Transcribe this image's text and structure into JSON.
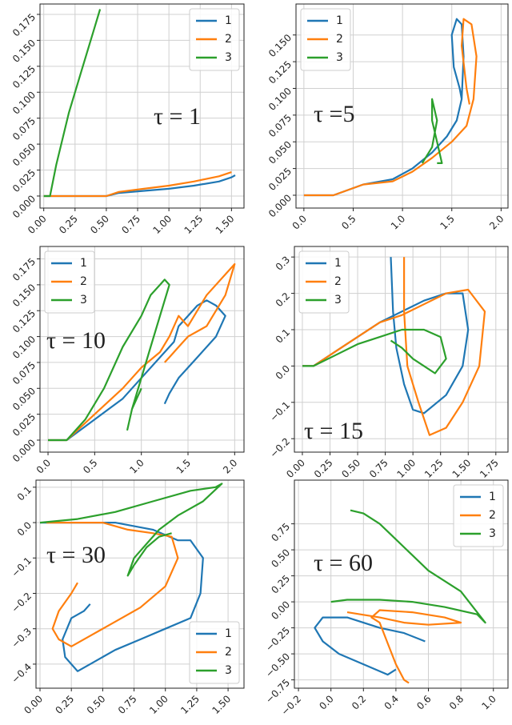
{
  "chart_data": [
    {
      "type": "line",
      "annotation": "τ = 1",
      "legend": "upper right",
      "grid": true,
      "xlim": [
        -0.03,
        1.6
      ],
      "ylim": [
        -0.0116,
        0.185
      ],
      "xticks": [
        {
          "value": 0,
          "label": "0.00"
        },
        {
          "value": 0.25,
          "label": "0.25"
        },
        {
          "value": 0.5,
          "label": "0.50"
        },
        {
          "value": 0.75,
          "label": "0.75"
        },
        {
          "value": 1,
          "label": "1.00"
        },
        {
          "value": 1.25,
          "label": "1.25"
        },
        {
          "value": 1.5,
          "label": "1.50"
        }
      ],
      "yticks": [
        {
          "value": 0,
          "label": "0.000"
        },
        {
          "value": 0.025,
          "label": "0.025"
        },
        {
          "value": 0.05,
          "label": "0.050"
        },
        {
          "value": 0.075,
          "label": "0.075"
        },
        {
          "value": 0.1,
          "label": "0.100"
        },
        {
          "value": 0.125,
          "label": "0.125"
        },
        {
          "value": 0.15,
          "label": "0.150"
        },
        {
          "value": 0.175,
          "label": "0.175"
        }
      ],
      "series": [
        {
          "name": "1",
          "color": "#1f77b4",
          "x": [
            0,
            0.5,
            0.6,
            0.8,
            1.0,
            1.2,
            1.4,
            1.5,
            1.53
          ],
          "values": [
            0,
            0,
            0.003,
            0.005,
            0.007,
            0.01,
            0.014,
            0.018,
            0.02
          ]
        },
        {
          "name": "2",
          "color": "#ff7f0e",
          "x": [
            0,
            0.5,
            0.6,
            0.8,
            1.0,
            1.2,
            1.4,
            1.5
          ],
          "values": [
            0,
            0,
            0.004,
            0.007,
            0.01,
            0.014,
            0.019,
            0.023
          ]
        },
        {
          "name": "3",
          "color": "#2ca02c",
          "x": [
            0,
            0.05,
            0.1,
            0.2,
            0.3,
            0.4,
            0.45
          ],
          "values": [
            0,
            0,
            0.03,
            0.08,
            0.12,
            0.16,
            0.18
          ]
        }
      ]
    },
    {
      "type": "line",
      "annotation": "τ =5",
      "legend": "upper left",
      "grid": true,
      "xlim": [
        -0.08,
        2.07
      ],
      "ylim": [
        -0.012,
        0.179
      ],
      "xticks": [
        {
          "value": 0,
          "label": "0.0"
        },
        0.5,
        {
          "value": 1,
          "label": "1.0"
        },
        1.5,
        {
          "value": 2,
          "label": "2.0"
        }
      ],
      "yticks": [
        {
          "value": 0,
          "label": "0.000"
        },
        {
          "value": 0.025,
          "label": "0.025"
        },
        {
          "value": 0.05,
          "label": "0.050"
        },
        {
          "value": 0.075,
          "label": "0.075"
        },
        {
          "value": 0.1,
          "label": "0.100"
        },
        {
          "value": 0.125,
          "label": "0.125"
        },
        {
          "value": 0.15,
          "label": "0.150"
        }
      ],
      "series": [
        {
          "name": "1",
          "color": "#1f77b4",
          "x": [
            0,
            0.3,
            0.6,
            0.9,
            1.1,
            1.3,
            1.45,
            1.55,
            1.6,
            1.62,
            1.6,
            1.55,
            1.5,
            1.52,
            1.58,
            1.6
          ],
          "values": [
            0,
            0,
            0.01,
            0.015,
            0.025,
            0.04,
            0.055,
            0.07,
            0.09,
            0.13,
            0.16,
            0.165,
            0.15,
            0.12,
            0.1,
            0.09
          ]
        },
        {
          "name": "2",
          "color": "#ff7f0e",
          "x": [
            0,
            0.3,
            0.6,
            0.9,
            1.1,
            1.3,
            1.5,
            1.65,
            1.72,
            1.75,
            1.7,
            1.62,
            1.6,
            1.65,
            1.68
          ],
          "values": [
            0,
            0,
            0.01,
            0.013,
            0.022,
            0.035,
            0.05,
            0.065,
            0.09,
            0.13,
            0.16,
            0.165,
            0.14,
            0.1,
            0.085
          ]
        },
        {
          "name": "3",
          "color": "#2ca02c",
          "x": [
            1.2,
            1.3,
            1.35,
            1.3,
            1.3,
            1.35,
            1.4,
            1.35
          ],
          "values": [
            0.03,
            0.045,
            0.07,
            0.09,
            0.07,
            0.05,
            0.03,
            0.03
          ]
        }
      ]
    },
    {
      "type": "line",
      "annotation": "τ = 10",
      "legend": "upper left",
      "grid": true,
      "xlim": [
        -0.086,
        2.1
      ],
      "ylim": [
        -0.0116,
        0.187
      ],
      "xticks": [
        {
          "value": 0,
          "label": "0.0"
        },
        0.5,
        {
          "value": 1,
          "label": "1.0"
        },
        1.5,
        {
          "value": 2,
          "label": "2.0"
        }
      ],
      "yticks": [
        {
          "value": 0,
          "label": "0.000"
        },
        {
          "value": 0.025,
          "label": "0.025"
        },
        {
          "value": 0.05,
          "label": "0.050"
        },
        {
          "value": 0.075,
          "label": "0.075"
        },
        {
          "value": 0.1,
          "label": "0.100"
        },
        {
          "value": 0.125,
          "label": "0.125"
        },
        {
          "value": 0.15,
          "label": "0.150"
        },
        {
          "value": 0.175,
          "label": "0.175"
        }
      ],
      "series": [
        {
          "name": "1",
          "color": "#1f77b4",
          "x": [
            0,
            0.2,
            0.5,
            0.8,
            1.0,
            1.2,
            1.35,
            1.4,
            1.5,
            1.6,
            1.7,
            1.8,
            1.9,
            1.8,
            1.6,
            1.4,
            1.3,
            1.25
          ],
          "values": [
            0,
            0,
            0.02,
            0.04,
            0.06,
            0.08,
            0.095,
            0.11,
            0.12,
            0.13,
            0.135,
            0.13,
            0.12,
            0.1,
            0.08,
            0.06,
            0.045,
            0.035
          ]
        },
        {
          "name": "2",
          "color": "#ff7f0e",
          "x": [
            0,
            0.2,
            0.5,
            0.8,
            1.0,
            1.2,
            1.3,
            1.4,
            1.5,
            1.7,
            1.9,
            2.0,
            1.9,
            1.7,
            1.5,
            1.4,
            1.3,
            1.25
          ],
          "values": [
            0,
            0,
            0.025,
            0.05,
            0.07,
            0.085,
            0.1,
            0.12,
            0.11,
            0.14,
            0.16,
            0.17,
            0.14,
            0.11,
            0.1,
            0.09,
            0.08,
            0.075
          ]
        },
        {
          "name": "3",
          "color": "#2ca02c",
          "x": [
            0,
            0.2,
            0.4,
            0.6,
            0.8,
            1.0,
            1.1,
            1.2,
            1.25,
            1.3,
            1.2,
            1.1,
            1.0,
            0.9,
            0.85,
            0.9,
            1.0
          ],
          "values": [
            0,
            0,
            0.02,
            0.05,
            0.09,
            0.12,
            0.14,
            0.15,
            0.155,
            0.15,
            0.12,
            0.09,
            0.06,
            0.03,
            0.01,
            0.03,
            0.05
          ]
        }
      ]
    },
    {
      "type": "line",
      "annotation": "τ = 15",
      "legend": "upper left",
      "grid": true,
      "xlim": [
        -0.072,
        1.86
      ],
      "ylim": [
        -0.237,
        0.329
      ],
      "xticks": [
        {
          "value": 0,
          "label": "0.00"
        },
        {
          "value": 0.25,
          "label": "0.25"
        },
        {
          "value": 0.5,
          "label": "0.50"
        },
        {
          "value": 0.75,
          "label": "0.75"
        },
        {
          "value": 1,
          "label": "1.00"
        },
        {
          "value": 1.25,
          "label": "1.25"
        },
        {
          "value": 1.5,
          "label": "1.50"
        },
        {
          "value": 1.75,
          "label": "1.75"
        }
      ],
      "yticks": [
        {
          "value": -0.2,
          "label": "−0.2"
        },
        {
          "value": -0.1,
          "label": "−0.1"
        },
        {
          "value": 0,
          "label": "0.0"
        },
        0.1,
        0.2,
        0.3
      ],
      "series": [
        {
          "name": "1",
          "color": "#1f77b4",
          "x": [
            0,
            0.1,
            0.3,
            0.5,
            0.7,
            0.9,
            1.1,
            1.3,
            1.45,
            1.5,
            1.45,
            1.3,
            1.1,
            1.0,
            0.92,
            0.85,
            0.82,
            0.8
          ],
          "values": [
            0,
            0,
            0.04,
            0.08,
            0.12,
            0.15,
            0.18,
            0.2,
            0.2,
            0.1,
            0,
            -0.08,
            -0.13,
            -0.12,
            -0.05,
            0.05,
            0.15,
            0.3
          ]
        },
        {
          "name": "2",
          "color": "#ff7f0e",
          "x": [
            0,
            0.1,
            0.3,
            0.5,
            0.7,
            0.9,
            1.1,
            1.3,
            1.5,
            1.65,
            1.6,
            1.45,
            1.3,
            1.15,
            1.05,
            0.95,
            0.92,
            0.92
          ],
          "values": [
            0,
            0,
            0.04,
            0.08,
            0.12,
            0.14,
            0.17,
            0.2,
            0.21,
            0.15,
            0,
            -0.1,
            -0.17,
            -0.19,
            -0.1,
            0,
            0.15,
            0.3
          ]
        },
        {
          "name": "3",
          "color": "#2ca02c",
          "x": [
            0,
            0.1,
            0.3,
            0.5,
            0.7,
            0.9,
            1.1,
            1.25,
            1.3,
            1.2,
            1.1,
            1.0,
            0.9,
            0.8
          ],
          "values": [
            0,
            0,
            0.03,
            0.06,
            0.08,
            0.1,
            0.1,
            0.08,
            0.02,
            -0.02,
            0,
            0.02,
            0.05,
            0.07
          ]
        }
      ]
    },
    {
      "type": "line",
      "annotation": "τ = 30",
      "legend": "lower right",
      "grid": true,
      "xlim": [
        -0.032,
        1.627
      ],
      "ylim": [
        -0.468,
        0.12
      ],
      "xticks": [
        {
          "value": 0,
          "label": "0.00"
        },
        {
          "value": 0.25,
          "label": "0.25"
        },
        {
          "value": 0.5,
          "label": "0.50"
        },
        {
          "value": 0.75,
          "label": "0.75"
        },
        {
          "value": 1,
          "label": "1.00"
        },
        {
          "value": 1.25,
          "label": "1.25"
        },
        {
          "value": 1.5,
          "label": "1.50"
        }
      ],
      "yticks": [
        {
          "value": -0.4,
          "label": "−0.4"
        },
        {
          "value": -0.3,
          "label": "−0.3"
        },
        {
          "value": -0.2,
          "label": "−0.2"
        },
        {
          "value": -0.1,
          "label": "−0.1"
        },
        {
          "value": 0,
          "label": "0.0"
        },
        0.1
      ],
      "series": [
        {
          "name": "1",
          "color": "#1f77b4",
          "x": [
            0,
            0.3,
            0.6,
            0.9,
            1.1,
            1.2,
            1.3,
            1.28,
            1.2,
            1.0,
            0.8,
            0.6,
            0.4,
            0.3,
            0.2,
            0.18,
            0.25,
            0.35,
            0.4
          ],
          "values": [
            0,
            0,
            0,
            -0.02,
            -0.05,
            -0.05,
            -0.1,
            -0.2,
            -0.27,
            -0.3,
            -0.33,
            -0.36,
            -0.4,
            -0.42,
            -0.38,
            -0.33,
            -0.27,
            -0.25,
            -0.23
          ]
        },
        {
          "name": "2",
          "color": "#ff7f0e",
          "x": [
            0.05,
            0.3,
            0.5,
            0.7,
            0.9,
            1.05,
            1.1,
            1.0,
            0.8,
            0.6,
            0.4,
            0.25,
            0.15,
            0.1,
            0.15,
            0.25,
            0.3
          ],
          "values": [
            0,
            0,
            0,
            -0.02,
            -0.03,
            -0.04,
            -0.1,
            -0.18,
            -0.24,
            -0.28,
            -0.32,
            -0.35,
            -0.33,
            -0.3,
            -0.25,
            -0.2,
            -0.17
          ]
        },
        {
          "name": "3",
          "color": "#2ca02c",
          "x": [
            0,
            0.3,
            0.6,
            0.9,
            1.2,
            1.4,
            1.45,
            1.3,
            1.1,
            0.95,
            0.85,
            0.75,
            0.7,
            0.75,
            0.85,
            0.95,
            1.05
          ],
          "values": [
            0,
            0.01,
            0.03,
            0.06,
            0.09,
            0.1,
            0.11,
            0.06,
            0.02,
            -0.02,
            -0.06,
            -0.1,
            -0.15,
            -0.12,
            -0.07,
            -0.04,
            -0.03
          ]
        }
      ]
    },
    {
      "type": "line",
      "annotation": "τ = 60",
      "legend": "upper right",
      "grid": true,
      "xlim": [
        -0.225,
        1.09
      ],
      "ylim": [
        -0.83,
        1.17
      ],
      "xticks": [
        {
          "value": -0.2,
          "label": "−0.2"
        },
        {
          "value": 0,
          "label": "0.0"
        },
        0.2,
        0.4,
        0.6,
        0.8,
        {
          "value": 1,
          "label": "1.0"
        }
      ],
      "yticks": [
        {
          "value": -0.75,
          "label": "−0.75"
        },
        {
          "value": -0.5,
          "label": "−0.50"
        },
        {
          "value": -0.25,
          "label": "−0.25"
        },
        {
          "value": 0,
          "label": "0.00"
        },
        0.25,
        {
          "value": 0.5,
          "label": "0.50"
        },
        0.75
      ],
      "series": [
        {
          "name": "1",
          "color": "#1f77b4",
          "x": [
            0.4,
            0.35,
            0.2,
            0.05,
            -0.05,
            -0.1,
            -0.05,
            0.1,
            0.3,
            0.45,
            0.58
          ],
          "values": [
            -0.65,
            -0.7,
            -0.6,
            -0.5,
            -0.38,
            -0.25,
            -0.15,
            -0.15,
            -0.25,
            -0.3,
            -0.38
          ]
        },
        {
          "name": "2",
          "color": "#ff7f0e",
          "x": [
            0.48,
            0.45,
            0.4,
            0.35,
            0.3,
            0.25,
            0.3,
            0.5,
            0.7,
            0.8,
            0.6,
            0.45,
            0.3,
            0.1
          ],
          "values": [
            -0.78,
            -0.75,
            -0.6,
            -0.4,
            -0.2,
            -0.15,
            -0.08,
            -0.1,
            -0.15,
            -0.2,
            -0.22,
            -0.2,
            -0.15,
            -0.1
          ]
        },
        {
          "name": "3",
          "color": "#2ca02c",
          "x": [
            0.12,
            0.2,
            0.3,
            0.4,
            0.5,
            0.6,
            0.7,
            0.8,
            0.9,
            0.95,
            0.9,
            0.7,
            0.5,
            0.3,
            0.1,
            0
          ],
          "values": [
            0.88,
            0.85,
            0.75,
            0.6,
            0.45,
            0.3,
            0.2,
            0.1,
            -0.1,
            -0.2,
            -0.12,
            -0.05,
            0,
            0.02,
            0.02,
            0
          ]
        }
      ]
    }
  ]
}
